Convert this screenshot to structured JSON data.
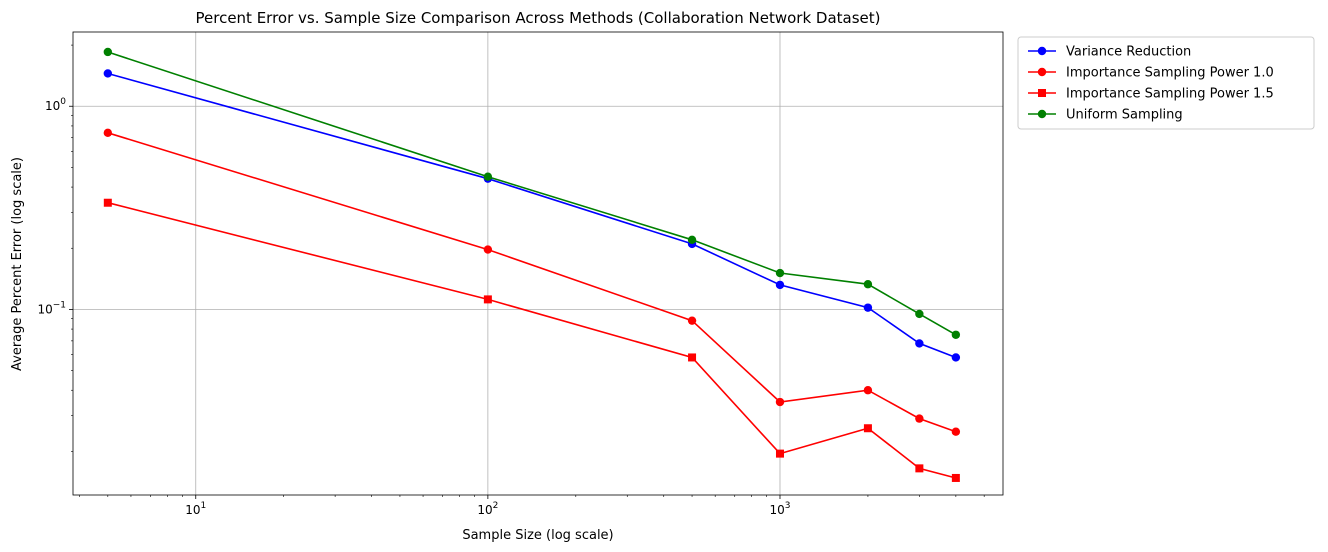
{
  "chart_data": {
    "type": "line",
    "title": "Percent Error vs. Sample Size Comparison Across Methods (Collaboration Network Dataset)",
    "xlabel": "Sample Size (log scale)",
    "ylabel": "Average Percent Error (log scale)",
    "xscale": "log",
    "yscale": "log",
    "xlim": [
      3.8,
      5800
    ],
    "ylim": [
      0.0122,
      2.32
    ],
    "grid": true,
    "legend_position": "outside-top-right",
    "x": [
      5,
      100,
      500,
      1000,
      2000,
      3000,
      4000
    ],
    "x_ticks": [
      {
        "value": 10,
        "base": "10",
        "exp": "1"
      },
      {
        "value": 100,
        "base": "10",
        "exp": "2"
      },
      {
        "value": 1000,
        "base": "10",
        "exp": "3"
      }
    ],
    "y_ticks": [
      {
        "value": 1,
        "base": "10",
        "exp": "0"
      },
      {
        "value": 0.1,
        "base": "10",
        "exp": "−1"
      }
    ],
    "series": [
      {
        "name": "Variance Reduction",
        "color": "#0000ff",
        "marker": "circle",
        "values": [
          1.45,
          0.44,
          0.21,
          0.132,
          0.102,
          0.068,
          0.058
        ]
      },
      {
        "name": "Importance Sampling Power 1.0",
        "color": "#ff0000",
        "marker": "circle",
        "values": [
          0.74,
          0.197,
          0.088,
          0.035,
          0.04,
          0.029,
          0.025
        ]
      },
      {
        "name": "Importance Sampling Power 1.5",
        "color": "#ff0000",
        "marker": "square",
        "values": [
          0.335,
          0.112,
          0.058,
          0.0195,
          0.026,
          0.0165,
          0.0148
        ]
      },
      {
        "name": "Uniform Sampling",
        "color": "#008000",
        "marker": "circle",
        "values": [
          1.85,
          0.45,
          0.22,
          0.151,
          0.133,
          0.095,
          0.075
        ]
      }
    ]
  }
}
